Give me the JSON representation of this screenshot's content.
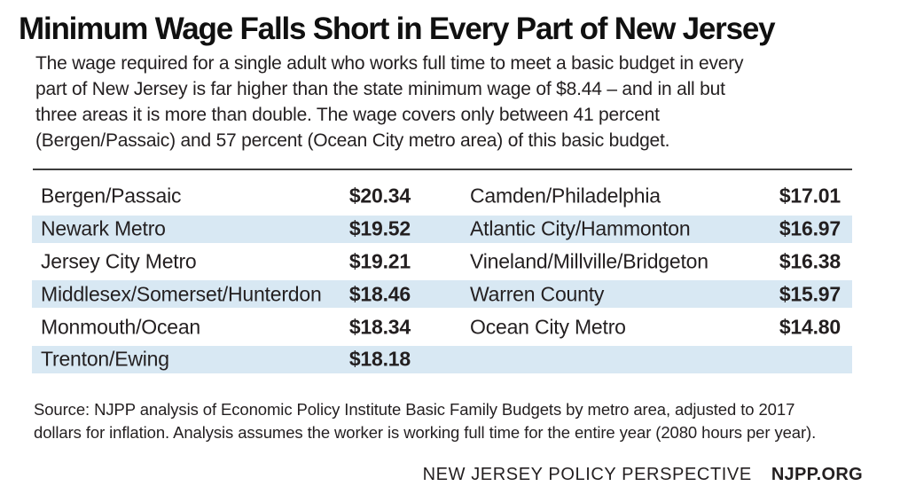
{
  "title": "Minimum Wage Falls Short in Every Part of New Jersey",
  "intro": {
    "lines": [
      "The wage required for a single adult who works full time to meet a basic budget in every",
      "part of New Jersey is far higher than the state minimum wage of $8.44 – and in all but",
      "three areas it is more than double. The wage covers only between 41 percent",
      "(Bergen/Passaic) and 57 percent (Ocean City metro area) of this basic budget."
    ]
  },
  "table": {
    "rows": [
      {
        "left_region": "Bergen/Passaic",
        "left_wage": "$20.34",
        "right_region": "Camden/Philadelphia",
        "right_wage": "$17.01"
      },
      {
        "left_region": "Newark Metro",
        "left_wage": "$19.52",
        "right_region": "Atlantic City/Hammonton",
        "right_wage": "$16.97"
      },
      {
        "left_region": "Jersey City Metro",
        "left_wage": "$19.21",
        "right_region": "Vineland/Millville/Bridgeton",
        "right_wage": "$16.38"
      },
      {
        "left_region": "Middlesex/Somerset/Hunterdon",
        "left_wage": "$18.46",
        "right_region": "Warren County",
        "right_wage": "$15.97"
      },
      {
        "left_region": "Monmouth/Ocean",
        "left_wage": "$18.34",
        "right_region": "Ocean City Metro",
        "right_wage": "$14.80"
      },
      {
        "left_region": "Trenton/Ewing",
        "left_wage": "$18.18",
        "right_region": "",
        "right_wage": ""
      }
    ]
  },
  "source": {
    "lines": [
      "Source: NJPP analysis of Economic Policy Institute Basic Family Budgets by metro area, adjusted to 2017",
      "dollars for inflation. Analysis assumes the worker is working full time for the entire year (2080 hours per year)."
    ]
  },
  "footer": {
    "org": "NEW JERSEY POLICY PERSPECTIVE",
    "site": "NJPP.ORG"
  },
  "colors": {
    "stripe": "#d8e8f3",
    "text": "#231f20",
    "rule": "#3d3d3d",
    "background": "#ffffff"
  },
  "chart_data": {
    "type": "table",
    "title": "Minimum Wage Falls Short in Every Part of New Jersey",
    "columns": [
      "Region",
      "Hourly wage required for basic budget"
    ],
    "categories": [
      "Bergen/Passaic",
      "Newark Metro",
      "Jersey City Metro",
      "Middlesex/Somerset/Hunterdon",
      "Monmouth/Ocean",
      "Trenton/Ewing",
      "Camden/Philadelphia",
      "Atlantic City/Hammonton",
      "Vineland/Millville/Bridgeton",
      "Warren County",
      "Ocean City Metro"
    ],
    "values": [
      20.34,
      19.52,
      19.21,
      18.46,
      18.34,
      18.18,
      17.01,
      16.97,
      16.38,
      15.97,
      14.8
    ],
    "state_minimum_wage": 8.44,
    "coverage_percent_range": [
      41,
      57
    ]
  }
}
